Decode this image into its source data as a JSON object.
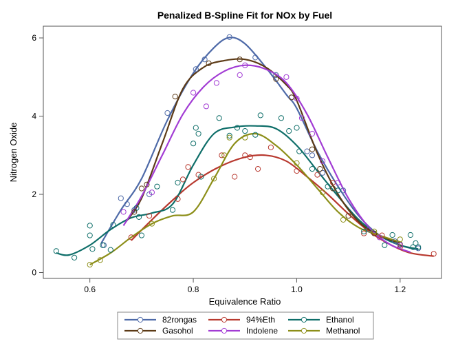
{
  "chart_data": {
    "type": "scatter",
    "title": "Penalized B-Spline Fit for NOx by Fuel",
    "xlabel": "Equivalence Ratio",
    "ylabel": "Nitrogen Oxide",
    "xlim": [
      0.51,
      1.28
    ],
    "ylim": [
      -0.15,
      6.3
    ],
    "xticks": [
      0.6,
      0.8,
      1.0,
      1.2
    ],
    "yticks": [
      0,
      2,
      4,
      6
    ],
    "xtick_labels": [
      "0.6",
      "0.8",
      "1.0",
      "1.2"
    ],
    "ytick_labels": [
      "0",
      "2",
      "4",
      "6"
    ],
    "grid": false,
    "legend_position": "bottom",
    "series": [
      {
        "name": "82rongas",
        "color": "#4E6AA8",
        "points": [
          [
            0.627,
            0.7
          ],
          [
            0.66,
            1.9
          ],
          [
            0.672,
            1.75
          ],
          [
            0.686,
            1.6
          ],
          [
            0.715,
            2.0
          ],
          [
            0.75,
            4.08
          ],
          [
            0.805,
            5.2
          ],
          [
            0.822,
            5.45
          ],
          [
            0.87,
            6.02
          ],
          [
            0.92,
            5.5
          ],
          [
            0.96,
            5.05
          ],
          [
            0.99,
            4.48
          ],
          [
            1.02,
            3.1
          ],
          [
            1.03,
            3.0
          ],
          [
            1.05,
            2.55
          ],
          [
            1.09,
            2.1
          ],
          [
            1.14,
            1.1
          ],
          [
            1.19,
            0.8
          ],
          [
            1.235,
            0.62
          ]
        ],
        "curve": [
          [
            0.622,
            0.75
          ],
          [
            0.66,
            1.6
          ],
          [
            0.7,
            2.4
          ],
          [
            0.75,
            3.9
          ],
          [
            0.8,
            5.1
          ],
          [
            0.84,
            5.75
          ],
          [
            0.87,
            6.01
          ],
          [
            0.9,
            5.85
          ],
          [
            0.94,
            5.25
          ],
          [
            0.98,
            4.55
          ],
          [
            1.0,
            4.2
          ],
          [
            1.04,
            3.1
          ],
          [
            1.08,
            2.2
          ],
          [
            1.12,
            1.45
          ],
          [
            1.16,
            0.95
          ],
          [
            1.2,
            0.7
          ],
          [
            1.235,
            0.58
          ]
        ]
      },
      {
        "name": "94%Eth",
        "color": "#B8392F",
        "points": [
          [
            0.68,
            0.9
          ],
          [
            0.715,
            1.45
          ],
          [
            0.77,
            1.88
          ],
          [
            0.78,
            2.38
          ],
          [
            0.79,
            2.7
          ],
          [
            0.81,
            2.5
          ],
          [
            0.855,
            3.0
          ],
          [
            0.88,
            2.45
          ],
          [
            0.9,
            3.0
          ],
          [
            0.91,
            2.95
          ],
          [
            0.925,
            2.65
          ],
          [
            0.95,
            3.2
          ],
          [
            1.0,
            2.6
          ],
          [
            1.04,
            2.5
          ],
          [
            1.07,
            2.3
          ],
          [
            1.13,
            1.0
          ],
          [
            1.165,
            0.95
          ],
          [
            1.2,
            0.65
          ],
          [
            1.265,
            0.48
          ]
        ],
        "curve": [
          [
            0.68,
            0.82
          ],
          [
            0.72,
            1.35
          ],
          [
            0.76,
            1.85
          ],
          [
            0.8,
            2.3
          ],
          [
            0.85,
            2.7
          ],
          [
            0.9,
            2.95
          ],
          [
            0.94,
            3.0
          ],
          [
            0.98,
            2.85
          ],
          [
            1.02,
            2.45
          ],
          [
            1.06,
            2.0
          ],
          [
            1.1,
            1.5
          ],
          [
            1.14,
            1.05
          ],
          [
            1.18,
            0.72
          ],
          [
            1.22,
            0.5
          ],
          [
            1.265,
            0.42
          ]
        ]
      },
      {
        "name": "Ethanol",
        "color": "#0E6E69",
        "points": [
          [
            0.535,
            0.55
          ],
          [
            0.57,
            0.38
          ],
          [
            0.6,
            1.2
          ],
          [
            0.6,
            0.95
          ],
          [
            0.605,
            0.6
          ],
          [
            0.625,
            0.7
          ],
          [
            0.64,
            0.58
          ],
          [
            0.645,
            1.22
          ],
          [
            0.69,
            1.65
          ],
          [
            0.695,
            1.42
          ],
          [
            0.7,
            0.95
          ],
          [
            0.73,
            2.2
          ],
          [
            0.76,
            1.6
          ],
          [
            0.77,
            2.3
          ],
          [
            0.8,
            3.3
          ],
          [
            0.805,
            3.7
          ],
          [
            0.81,
            3.55
          ],
          [
            0.815,
            2.45
          ],
          [
            0.85,
            3.95
          ],
          [
            0.87,
            3.5
          ],
          [
            0.885,
            3.7
          ],
          [
            0.9,
            3.62
          ],
          [
            0.92,
            3.52
          ],
          [
            0.93,
            4.02
          ],
          [
            0.97,
            3.95
          ],
          [
            0.985,
            3.62
          ],
          [
            1.0,
            3.7
          ],
          [
            1.005,
            3.1
          ],
          [
            1.03,
            2.65
          ],
          [
            1.06,
            2.2
          ],
          [
            1.08,
            2.1
          ],
          [
            1.13,
            1.05
          ],
          [
            1.17,
            0.7
          ],
          [
            1.185,
            0.96
          ],
          [
            1.22,
            0.96
          ],
          [
            1.225,
            0.65
          ],
          [
            1.23,
            0.75
          ],
          [
            1.235,
            0.65
          ]
        ],
        "curve": [
          [
            0.535,
            0.5
          ],
          [
            0.56,
            0.45
          ],
          [
            0.6,
            0.7
          ],
          [
            0.64,
            1.1
          ],
          [
            0.68,
            1.4
          ],
          [
            0.72,
            1.52
          ],
          [
            0.76,
            1.75
          ],
          [
            0.8,
            2.75
          ],
          [
            0.84,
            3.55
          ],
          [
            0.88,
            3.72
          ],
          [
            0.92,
            3.75
          ],
          [
            0.96,
            3.68
          ],
          [
            1.0,
            3.25
          ],
          [
            1.04,
            2.6
          ],
          [
            1.08,
            1.95
          ],
          [
            1.12,
            1.35
          ],
          [
            1.16,
            0.95
          ],
          [
            1.2,
            0.7
          ],
          [
            1.235,
            0.6
          ]
        ]
      },
      {
        "name": "Gasohol",
        "color": "#5C3A16",
        "points": [
          [
            0.686,
            1.55
          ],
          [
            0.7,
            2.15
          ],
          [
            0.71,
            2.25
          ],
          [
            0.765,
            4.5
          ],
          [
            0.83,
            5.35
          ],
          [
            0.89,
            5.45
          ],
          [
            0.96,
            4.95
          ],
          [
            0.99,
            4.48
          ],
          [
            1.03,
            3.15
          ],
          [
            1.045,
            2.65
          ],
          [
            1.07,
            2.15
          ],
          [
            1.1,
            1.45
          ],
          [
            1.15,
            1.0
          ],
          [
            1.2,
            0.72
          ]
        ],
        "curve": [
          [
            0.67,
            1.3
          ],
          [
            0.7,
            1.9
          ],
          [
            0.74,
            3.3
          ],
          [
            0.78,
            4.7
          ],
          [
            0.82,
            5.25
          ],
          [
            0.86,
            5.42
          ],
          [
            0.9,
            5.45
          ],
          [
            0.94,
            5.25
          ],
          [
            0.98,
            4.8
          ],
          [
            1.0,
            4.4
          ],
          [
            1.04,
            3.05
          ],
          [
            1.08,
            2.0
          ],
          [
            1.12,
            1.3
          ],
          [
            1.16,
            0.95
          ],
          [
            1.2,
            0.75
          ]
        ]
      },
      {
        "name": "Indolene",
        "color": "#A23CD4",
        "points": [
          [
            0.665,
            1.55
          ],
          [
            0.72,
            2.05
          ],
          [
            0.8,
            4.6
          ],
          [
            0.825,
            4.25
          ],
          [
            0.845,
            4.85
          ],
          [
            0.89,
            5.05
          ],
          [
            0.9,
            5.3
          ],
          [
            0.98,
            5.0
          ],
          [
            1.0,
            4.45
          ],
          [
            1.01,
            3.95
          ],
          [
            1.03,
            3.55
          ],
          [
            1.05,
            2.85
          ],
          [
            1.08,
            2.3
          ],
          [
            1.16,
            0.9
          ],
          [
            1.2,
            0.7
          ]
        ],
        "curve": [
          [
            0.665,
            1.2
          ],
          [
            0.7,
            1.95
          ],
          [
            0.74,
            3.0
          ],
          [
            0.78,
            4.05
          ],
          [
            0.82,
            4.75
          ],
          [
            0.86,
            5.15
          ],
          [
            0.9,
            5.3
          ],
          [
            0.94,
            5.2
          ],
          [
            0.98,
            4.85
          ],
          [
            1.02,
            4.05
          ],
          [
            1.06,
            2.95
          ],
          [
            1.1,
            1.9
          ],
          [
            1.14,
            1.15
          ],
          [
            1.18,
            0.72
          ],
          [
            1.22,
            0.52
          ]
        ]
      },
      {
        "name": "Methanol",
        "color": "#8C8E18",
        "points": [
          [
            0.6,
            0.2
          ],
          [
            0.62,
            0.32
          ],
          [
            0.72,
            1.25
          ],
          [
            0.84,
            2.4
          ],
          [
            0.86,
            3.0
          ],
          [
            0.87,
            3.45
          ],
          [
            0.9,
            3.45
          ],
          [
            1.0,
            2.8
          ],
          [
            1.05,
            2.05
          ],
          [
            1.09,
            1.35
          ],
          [
            1.15,
            1.05
          ],
          [
            1.2,
            0.85
          ]
        ],
        "curve": [
          [
            0.6,
            0.2
          ],
          [
            0.64,
            0.5
          ],
          [
            0.68,
            0.9
          ],
          [
            0.72,
            1.25
          ],
          [
            0.76,
            1.45
          ],
          [
            0.8,
            1.55
          ],
          [
            0.84,
            2.4
          ],
          [
            0.88,
            3.3
          ],
          [
            0.92,
            3.55
          ],
          [
            0.96,
            3.25
          ],
          [
            1.0,
            2.75
          ],
          [
            1.04,
            2.15
          ],
          [
            1.08,
            1.55
          ],
          [
            1.12,
            1.15
          ],
          [
            1.16,
            0.95
          ],
          [
            1.2,
            0.78
          ]
        ]
      }
    ]
  }
}
